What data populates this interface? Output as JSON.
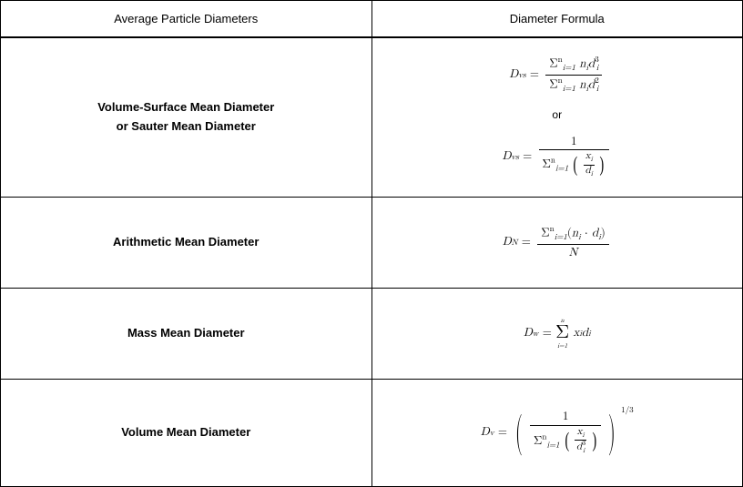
{
  "table": {
    "headers": {
      "col1": "Average Particle Diameters",
      "col2": "Diameter Formula"
    },
    "rows": {
      "vs": {
        "label_line1": "Volume-Surface Mean Diameter",
        "label_line2": "or Sauter Mean Diameter",
        "symbol": "D",
        "subscript": "vs",
        "or_text": "or",
        "sum_symbol": "Σ",
        "sum_lower": "i=1",
        "sum_upper": "n",
        "var_n": "n",
        "var_d": "d",
        "var_x": "x",
        "sub_i": "i",
        "exp_3": "3",
        "exp_2": "2",
        "num_1": "1"
      },
      "an": {
        "label": "Arithmetic Mean Diameter",
        "symbol": "D",
        "subscript": "N",
        "sum_symbol": "Σ",
        "sum_lower": "i=1",
        "sum_upper": "n",
        "var_n": "n",
        "var_d": "d",
        "sub_i": "i",
        "dot": "·",
        "big_N": "N"
      },
      "mw": {
        "label": "Mass Mean Diameter",
        "symbol": "D",
        "subscript": "w",
        "sum_symbol": "Σ",
        "sum_lower": "i=1",
        "sum_upper": "n",
        "var_x": "x",
        "var_d": "d",
        "sub_i": "i"
      },
      "vv": {
        "label": "Volume Mean Diameter",
        "symbol": "D",
        "subscript": "v",
        "sum_symbol": "Σ",
        "sum_lower": "i=1",
        "sum_upper": "n",
        "var_x": "x",
        "var_d": "d",
        "sub_i": "i",
        "exp_3": "3",
        "num_1": "1",
        "power": "1/3"
      }
    }
  },
  "styling": {
    "font_family": "Segoe UI, Arial, sans-serif",
    "math_font": "Cambria Math, Latin Modern Math, Times New Roman, serif",
    "header_fontsize": 13,
    "label_fontsize": 13,
    "background_color": "#ffffff",
    "border_color": "#000000",
    "text_color": "#000000",
    "header_border_bottom_width": 2,
    "row_heights": {
      "header": 40,
      "vs": 176,
      "an": 100,
      "mw": 100,
      "vv": 118
    }
  }
}
